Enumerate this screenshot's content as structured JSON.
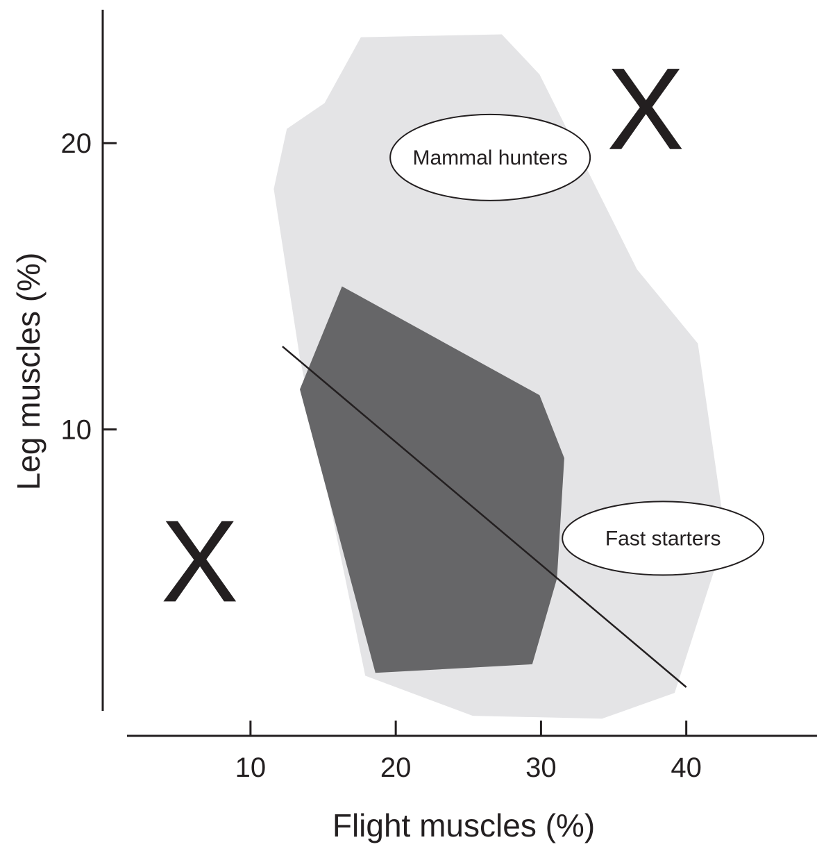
{
  "chart_data": {
    "type": "area",
    "title": "",
    "xlabel": "Flight muscles (%)",
    "ylabel": "Leg muscles (%)",
    "xlim": [
      1.5,
      49
    ],
    "ylim": [
      -0.7,
      25
    ],
    "xticks": [
      10,
      20,
      30,
      40
    ],
    "yticks": [
      10,
      20
    ],
    "grid": false,
    "legend": "none",
    "colors": {
      "outer_region": "#e4e4e6",
      "inner_region": "#666668",
      "axes": "#231f20",
      "label_fill": "#ffffff"
    },
    "regions": [
      {
        "id": "outer",
        "polygon": [
          [
            17.6,
            23.7
          ],
          [
            27.3,
            23.8
          ],
          [
            29.9,
            22.4
          ],
          [
            36.6,
            15.6
          ],
          [
            40.8,
            13.0
          ],
          [
            42.7,
            6.3
          ],
          [
            39.2,
            0.8
          ],
          [
            34.2,
            -0.1
          ],
          [
            25.3,
            0.0
          ],
          [
            17.9,
            1.4
          ],
          [
            13.4,
            12.5
          ],
          [
            11.6,
            18.4
          ],
          [
            12.5,
            20.5
          ],
          [
            15.1,
            21.4
          ]
        ]
      },
      {
        "id": "inner",
        "polygon": [
          [
            16.3,
            15.0
          ],
          [
            29.9,
            11.2
          ],
          [
            31.6,
            9.0
          ],
          [
            31.1,
            4.8
          ],
          [
            29.4,
            1.8
          ],
          [
            18.6,
            1.5
          ],
          [
            13.4,
            11.4
          ]
        ]
      }
    ],
    "trend_line": [
      [
        12.2,
        12.9
      ],
      [
        40.0,
        1.0
      ]
    ],
    "annotations": [
      {
        "text": "Mammal hunters",
        "x": 26.5,
        "y": 19.5
      },
      {
        "text": "Fast starters",
        "x": 38.4,
        "y": 6.2
      }
    ],
    "markers": [
      {
        "symbol": "X",
        "x": 6.5,
        "y": 5.4
      },
      {
        "symbol": "X",
        "x": 37.2,
        "y": 21.2
      }
    ]
  }
}
